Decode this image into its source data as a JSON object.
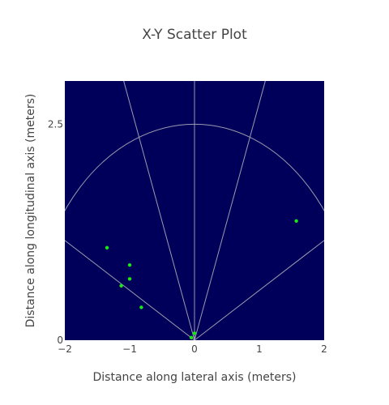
{
  "chart_data": {
    "type": "scatter",
    "title": "X-Y Scatter Plot",
    "xlabel": "Distance along lateral axis (meters)",
    "ylabel": "Distance along longitudinal axis (meters)",
    "xlim": [
      -2,
      2
    ],
    "ylim": [
      0,
      3
    ],
    "x_ticks": [
      -2,
      -1,
      0,
      1,
      2
    ],
    "x_tick_labels": [
      "−2",
      "−1",
      "0",
      "1",
      "2"
    ],
    "y_ticks": [
      0,
      2.5
    ],
    "y_tick_labels": [
      "0",
      "2.5"
    ],
    "grid": false,
    "background_color": "#00005a",
    "guide_color": "#9a9ab0",
    "point_color": "#19e619",
    "guides": {
      "arc_radius": 2.5,
      "rays_deg": [
        30,
        70,
        90,
        110,
        150
      ]
    },
    "series": [
      {
        "x": [
          -1.35,
          -1.0,
          -1.0,
          -1.13,
          -0.82,
          1.57,
          -0.05,
          0.0
        ],
        "y": [
          1.07,
          0.87,
          0.71,
          0.63,
          0.38,
          1.38,
          0.03,
          0.08
        ]
      }
    ]
  }
}
